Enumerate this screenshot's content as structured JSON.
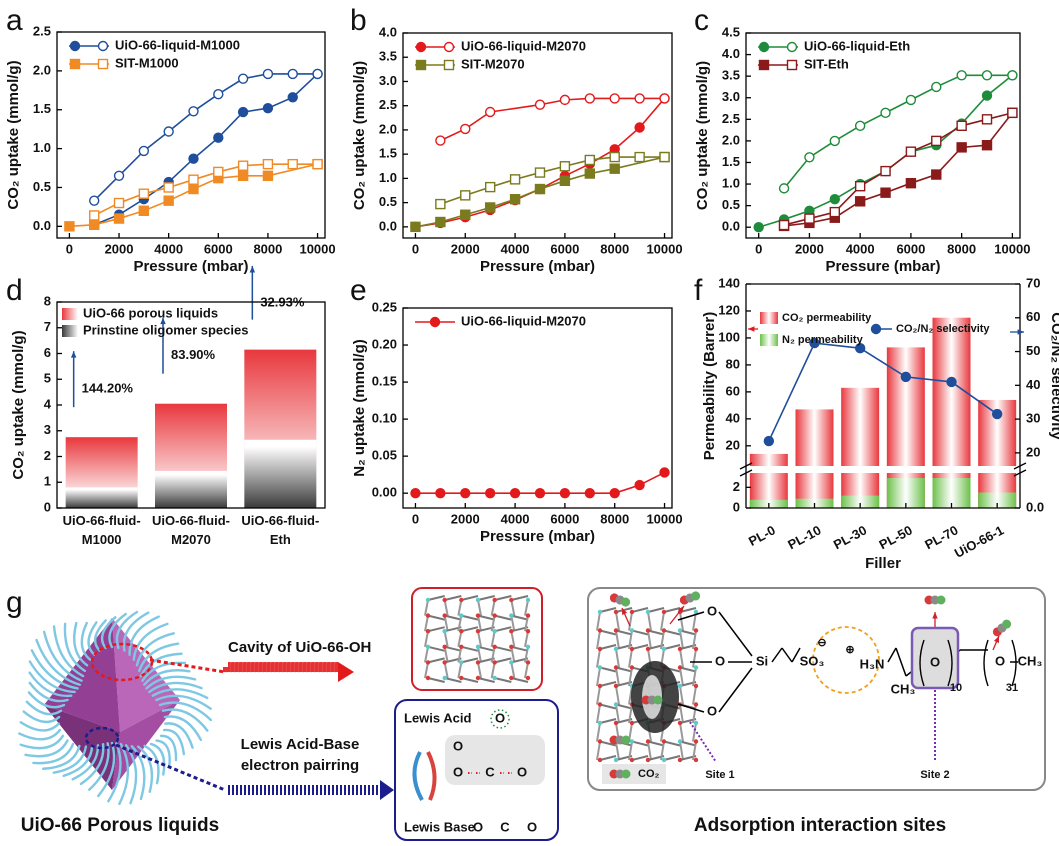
{
  "chart_data": [
    {
      "type": "line",
      "label": "a",
      "xlabel": "Pressure (mbar)",
      "ylabel": "CO₂ uptake (mmol/g)",
      "xlim": [
        -500,
        10300
      ],
      "ylim": [
        -0.15,
        2.5
      ],
      "xticks": [
        0,
        2000,
        4000,
        6000,
        8000,
        10000
      ],
      "yticks": [
        {
          "value": 0,
          "label": "0.0"
        },
        0.5,
        {
          "value": 1,
          "label": "1.0"
        },
        1.5,
        {
          "value": 2,
          "label": "2.0"
        },
        2.5
      ],
      "series": [
        {
          "name": "UiO-66-liquid-M1000",
          "color": "#1f4e9c",
          "marker": "circle",
          "adsorption": {
            "x": [
              1000,
              2000,
              3000,
              4000,
              5000,
              6000,
              7000,
              8000,
              9000,
              10000
            ],
            "values": [
              0.02,
              0.15,
              0.35,
              0.57,
              0.87,
              1.14,
              1.47,
              1.52,
              1.66,
              1.96
            ]
          },
          "desorption": {
            "x": [
              1000,
              2000,
              3000,
              4000,
              5000,
              6000,
              7000,
              8000,
              9000,
              10000
            ],
            "values": [
              0.33,
              0.65,
              0.97,
              1.22,
              1.48,
              1.7,
              1.9,
              1.96,
              1.96,
              1.96
            ]
          }
        },
        {
          "name": "SIT-M1000",
          "color": "#f08a24",
          "marker": "square",
          "adsorption": {
            "x": [
              0,
              1000,
              2000,
              3000,
              4000,
              5000,
              6000,
              7000,
              8000,
              10000
            ],
            "values": [
              0,
              0.02,
              0.1,
              0.2,
              0.33,
              0.48,
              0.62,
              0.65,
              0.65,
              0.8
            ]
          },
          "desorption": {
            "x": [
              1000,
              2000,
              3000,
              4000,
              5000,
              6000,
              7000,
              8000,
              9000,
              10000
            ],
            "values": [
              0.14,
              0.3,
              0.42,
              0.5,
              0.6,
              0.7,
              0.78,
              0.8,
              0.8,
              0.8
            ]
          }
        }
      ]
    },
    {
      "type": "line",
      "label": "b",
      "xlabel": "Pressure (mbar)",
      "ylabel": "CO₂ uptake (mmol/g)",
      "xlim": [
        -500,
        10300
      ],
      "ylim": [
        -0.23,
        4.0
      ],
      "xticks": [
        0,
        2000,
        4000,
        6000,
        8000,
        10000
      ],
      "yticks": [
        {
          "value": 0,
          "label": "0.0"
        },
        0.5,
        {
          "value": 1,
          "label": "1.0"
        },
        1.5,
        {
          "value": 2,
          "label": "2.0"
        },
        2.5,
        {
          "value": 3,
          "label": "3.0"
        },
        3.5,
        {
          "value": 4,
          "label": "4.0"
        }
      ],
      "series": [
        {
          "name": "UiO-66-liquid-M2070",
          "color": "#e31a1c",
          "marker": "circle",
          "adsorption": {
            "x": [
              0,
              1000,
              2000,
              3000,
              4000,
              5000,
              6000,
              7000,
              8000,
              9000,
              10000
            ],
            "values": [
              0,
              0.08,
              0.2,
              0.35,
              0.55,
              0.78,
              1.05,
              1.3,
              1.6,
              2.05,
              2.65
            ]
          },
          "desorption": {
            "x": [
              1000,
              2000,
              3000,
              5000,
              6000,
              7000,
              8000,
              9000,
              10000
            ],
            "values": [
              1.78,
              2.02,
              2.37,
              2.52,
              2.62,
              2.65,
              2.65,
              2.65,
              2.65
            ]
          }
        },
        {
          "name": "SIT-M2070",
          "color": "#7a7a1e",
          "marker": "square",
          "adsorption": {
            "x": [
              0,
              1000,
              2000,
              3000,
              4000,
              5000,
              6000,
              7000,
              8000,
              10000
            ],
            "values": [
              0,
              0.1,
              0.25,
              0.4,
              0.57,
              0.78,
              0.95,
              1.1,
              1.2,
              1.44
            ]
          },
          "desorption": {
            "x": [
              1000,
              2000,
              3000,
              4000,
              5000,
              6000,
              7000,
              8000,
              9000,
              10000
            ],
            "values": [
              0.47,
              0.65,
              0.82,
              0.98,
              1.12,
              1.25,
              1.38,
              1.44,
              1.44,
              1.44
            ]
          }
        }
      ]
    },
    {
      "type": "line",
      "label": "c",
      "xlabel": "Pressure (mbar)",
      "ylabel": "CO₂ uptake (mmol/g)",
      "xlim": [
        -500,
        10300
      ],
      "ylim": [
        -0.25,
        4.5
      ],
      "xticks": [
        0,
        2000,
        4000,
        6000,
        8000,
        10000
      ],
      "yticks": [
        {
          "value": 0,
          "label": "0.0"
        },
        0.5,
        {
          "value": 1,
          "label": "1.0"
        },
        1.5,
        {
          "value": 2,
          "label": "2.0"
        },
        2.5,
        {
          "value": 3,
          "label": "3.0"
        },
        3.5,
        {
          "value": 4,
          "label": "4.0"
        },
        4.5
      ],
      "series": [
        {
          "name": "UiO-66-liquid-Eth",
          "color": "#1e8c3a",
          "marker": "circle",
          "adsorption": {
            "x": [
              0,
              1000,
              2000,
              3000,
              4000,
              5000,
              6000,
              7000,
              8000,
              9000,
              10000
            ],
            "values": [
              0,
              0.18,
              0.38,
              0.65,
              1.0,
              1.3,
              1.75,
              1.9,
              2.4,
              3.05,
              3.52
            ]
          },
          "desorption": {
            "x": [
              1000,
              2000,
              3000,
              4000,
              5000,
              6000,
              7000,
              8000,
              9000,
              10000
            ],
            "values": [
              0.9,
              1.62,
              2.0,
              2.35,
              2.65,
              2.95,
              3.25,
              3.52,
              3.52,
              3.52
            ]
          }
        },
        {
          "name": "SIT-Eth",
          "color": "#8b1a1a",
          "marker": "square",
          "adsorption": {
            "x": [
              1000,
              2000,
              3000,
              4000,
              5000,
              6000,
              7000,
              8000,
              9000,
              10000
            ],
            "values": [
              0.03,
              0.1,
              0.22,
              0.6,
              0.8,
              1.02,
              1.22,
              1.85,
              1.9,
              2.65
            ]
          },
          "desorption": {
            "x": [
              1000,
              2000,
              3000,
              4000,
              5000,
              6000,
              7000,
              8000,
              9000,
              10000
            ],
            "values": [
              0.05,
              0.2,
              0.35,
              0.95,
              1.3,
              1.75,
              2.0,
              2.35,
              2.5,
              2.65
            ]
          }
        }
      ]
    },
    {
      "type": "bar",
      "label": "d",
      "ylabel": "CO₂ uptake (mmol/g)",
      "categories": [
        "UiO-66-fluid-M1000",
        "UiO-66-fluid-M2070",
        "UiO-66-fluid-Eth"
      ],
      "ylim": [
        0,
        8
      ],
      "yticks": [
        0,
        1,
        2,
        3,
        4,
        5,
        6,
        7,
        8
      ],
      "series": [
        {
          "name": "UiO-66 porous liquids",
          "color": "#e8383d",
          "values": [
            2.75,
            4.05,
            6.15
          ]
        },
        {
          "name": "Prinstine oligomer species",
          "color": "#3a3a3a",
          "values": [
            0.8,
            1.44,
            2.65
          ]
        }
      ],
      "annotations": [
        "144.20%",
        "83.90%",
        "32.93%"
      ],
      "annotation_color": "#1f4e9c"
    },
    {
      "type": "line",
      "label": "e",
      "xlabel": "Pressure (mbar)",
      "ylabel": "N₂ uptake (mmol/g)",
      "xlim": [
        -500,
        10300
      ],
      "ylim": [
        -0.02,
        0.25
      ],
      "xticks": [
        0,
        2000,
        4000,
        6000,
        8000,
        10000
      ],
      "yticks": [
        {
          "value": 0,
          "label": "0.00"
        },
        {
          "value": 0.05,
          "label": "0.05"
        },
        {
          "value": 0.1,
          "label": "0.10"
        },
        {
          "value": 0.15,
          "label": "0.15"
        },
        {
          "value": 0.2,
          "label": "0.20"
        },
        {
          "value": 0.25,
          "label": "0.25"
        }
      ],
      "series": [
        {
          "name": "UiO-66-liquid-M2070",
          "color": "#e31a1c",
          "marker": "circle",
          "adsorption": {
            "x": [
              0,
              1000,
              2000,
              3000,
              4000,
              5000,
              6000,
              7000,
              8000,
              9000,
              10000
            ],
            "values": [
              0,
              0,
              0,
              0,
              0,
              0,
              0,
              0,
              0,
              0.011,
              0.028
            ]
          }
        }
      ]
    },
    {
      "type": "bar_line",
      "label": "f",
      "xlabel": "Filler",
      "ylabel": "Permeability (Barrer)",
      "y2label": "CO₂/N₂ selectivity",
      "categories": [
        "PL-0",
        "PL-10",
        "PL-30",
        "PL-50",
        "PL-70",
        "UiO-66-1"
      ],
      "ylim": [
        0,
        140
      ],
      "yticks": [
        0,
        2,
        20,
        40,
        60,
        80,
        100,
        120,
        140
      ],
      "y_break": [
        3,
        8
      ],
      "y2lim": [
        0,
        70
      ],
      "y2ticks": [
        {
          "value": 0,
          "label": "0.0"
        },
        20,
        30,
        40,
        50,
        60,
        70
      ],
      "y2_break": [
        1.5,
        17.3
      ],
      "ylabel_color": "#e31a1c",
      "y2label_color": "#1f4e9c",
      "series": [
        {
          "name": "CO₂ permeability",
          "color": "#e8383d",
          "values": [
            14,
            47,
            63,
            93,
            115,
            54
          ]
        },
        {
          "name": "N₂ permeability",
          "color": "#6cc04a",
          "values": [
            0.8,
            0.9,
            1.2,
            2.9,
            2.9,
            1.5
          ]
        },
        {
          "name": "CO₂/N₂ selectivity",
          "color": "#1f4e9c",
          "axis": "y2",
          "values": [
            23.5,
            52.5,
            51,
            42.5,
            41,
            31.5
          ]
        }
      ]
    }
  ],
  "diagram": {
    "label": "g",
    "cavity_text": "Cavity of UiO-66-OH",
    "pairing_text": [
      "Lewis Acid-Base",
      "electron pairring"
    ],
    "lewis_acid": "Lewis Acid",
    "lewis_base": "Lewis Base",
    "acid_atom": "O",
    "complex_atoms": [
      "O",
      "O",
      "C",
      "O"
    ],
    "base_atoms": [
      "O",
      "C",
      "O"
    ],
    "left_caption": "UiO-66 Porous liquids",
    "right_caption": "Adsorption interaction sites",
    "legend_co2": "CO₂",
    "site_1": "Site 1",
    "site_2": "Site 2",
    "molecule": [
      "O",
      "O",
      "O",
      "Si",
      "SO₃",
      "⊖",
      "⊕",
      "H₃N",
      "CH₃",
      "O",
      "10",
      "O",
      "31",
      "CH₃"
    ]
  }
}
